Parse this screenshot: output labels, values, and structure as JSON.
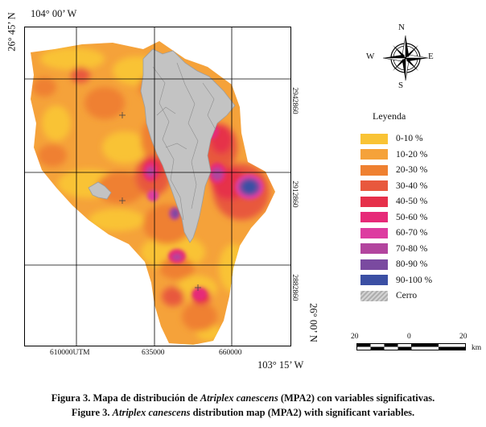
{
  "coordinates": {
    "top_lon": "104° 00’ W",
    "left_lat": "26° 45’ N",
    "bottom_lon": "103° 15’ W",
    "right_lat": "26° 00’ N"
  },
  "utm_northing": [
    "2942860",
    "2912860",
    "2882860"
  ],
  "utm_easting": [
    "610000UTM",
    "635000",
    "660000"
  ],
  "compass": {
    "n": "N",
    "s": "S",
    "e": "E",
    "w": "W"
  },
  "legend": {
    "title": "Leyenda",
    "items": [
      {
        "label": "0-10 %",
        "color": "#f9c335"
      },
      {
        "label": "10-20 %",
        "color": "#f5a23a"
      },
      {
        "label": "20-30 %",
        "color": "#ef8030"
      },
      {
        "label": "30-40 %",
        "color": "#e8583d"
      },
      {
        "label": "40-50 %",
        "color": "#e6304a"
      },
      {
        "label": "50-60 %",
        "color": "#e62a78"
      },
      {
        "label": "60-70 %",
        "color": "#dd3ca0"
      },
      {
        "label": "70-80 %",
        "color": "#b2449e"
      },
      {
        "label": "80-90 %",
        "color": "#7a4aa0"
      },
      {
        "label": "90-100 %",
        "color": "#3b4fa4"
      },
      {
        "label": "Cerro",
        "color": "#bdbdbd"
      }
    ]
  },
  "scale_bar": {
    "left": "20",
    "center": "0",
    "right": "20",
    "unit": "km"
  },
  "caption": {
    "es_prefix": "Figura 3. Mapa de distribución de ",
    "es_species": "Atriplex canescens",
    "es_suffix": " (MPA2) con variables significativas.",
    "en_prefix": "Figure 3. ",
    "en_species": "Atriplex canescens",
    "en_suffix": " distribution map (MPA2) with significant variables."
  }
}
